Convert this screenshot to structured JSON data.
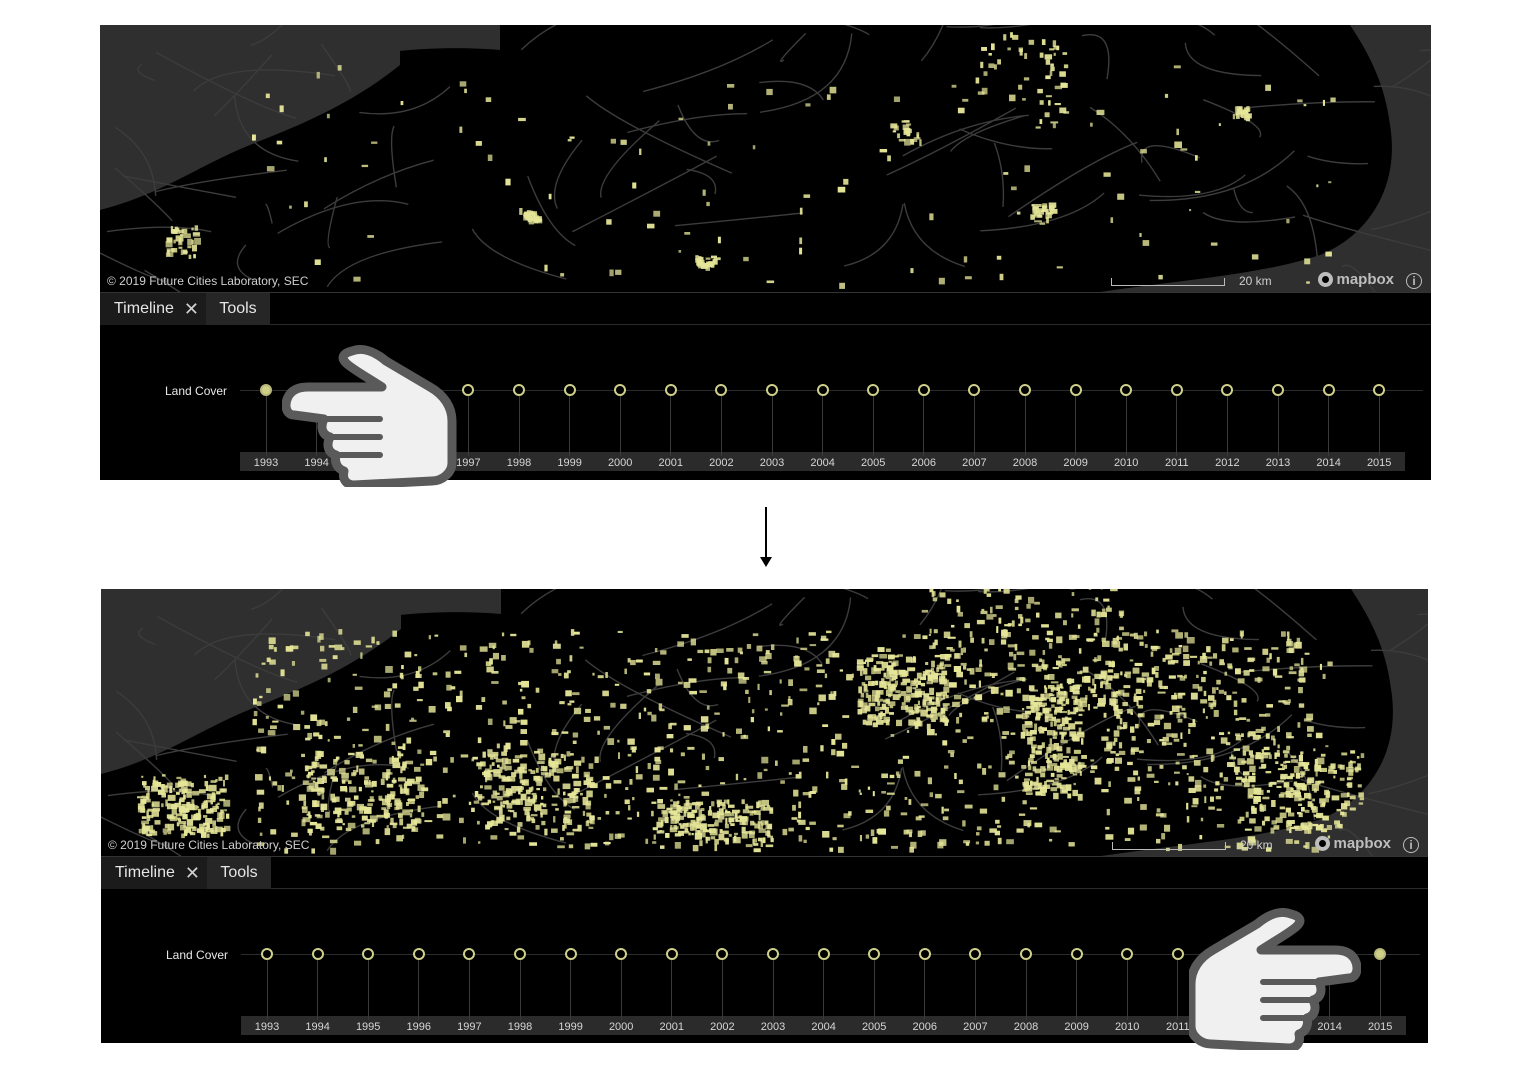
{
  "panels": [
    {
      "id": "before",
      "attribution": "© 2019 Future Cities Laboratory, SEC",
      "scale_label": "20 km",
      "mapbox_label": "mapbox",
      "info_glyph": "i",
      "tabs": {
        "timeline_label": "Timeline",
        "close_glyph": "✕",
        "tools_label": "Tools"
      },
      "layer_label": "Land Cover",
      "active_year": "1993",
      "urban_density": "sparse"
    },
    {
      "id": "after",
      "attribution": "© 2019 Future Cities Laboratory, SEC",
      "scale_label": "20 km",
      "mapbox_label": "mapbox",
      "info_glyph": "i",
      "tabs": {
        "timeline_label": "Timeline",
        "close_glyph": "✕",
        "tools_label": "Tools"
      },
      "layer_label": "Land Cover",
      "active_year": "2015",
      "urban_density": "dense"
    }
  ],
  "years": [
    "1993",
    "1994",
    "1995",
    "1996",
    "1997",
    "1998",
    "1999",
    "2000",
    "2001",
    "2002",
    "2003",
    "2004",
    "2005",
    "2006",
    "2007",
    "2008",
    "2009",
    "2010",
    "2011",
    "2012",
    "2013",
    "2014",
    "2015"
  ],
  "colors": {
    "urban": "#e6e699",
    "water": "#3a3a3a",
    "roads": "#4a4a4a",
    "active_dot": "#cfcf8a"
  },
  "icons": {
    "pointer": "pointing-hand-icon",
    "flow": "down-arrow-icon"
  }
}
